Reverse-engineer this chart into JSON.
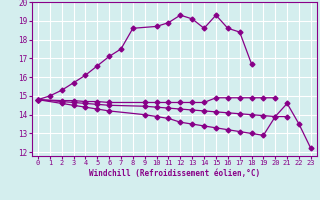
{
  "xlabel": "Windchill (Refroidissement éolien,°C)",
  "bg_color": "#d4eeee",
  "grid_color": "#ffffff",
  "line_color": "#880088",
  "xlim": [
    -0.5,
    23.5
  ],
  "ylim": [
    11.8,
    20.0
  ],
  "xticks": [
    0,
    1,
    2,
    3,
    4,
    5,
    6,
    7,
    8,
    9,
    10,
    11,
    12,
    13,
    14,
    15,
    16,
    17,
    18,
    19,
    20,
    21,
    22,
    23
  ],
  "yticks": [
    12,
    13,
    14,
    15,
    16,
    17,
    18,
    19,
    20
  ],
  "series": [
    {
      "x": [
        0,
        1,
        2,
        3,
        4,
        5,
        6,
        7,
        8,
        10,
        11,
        12,
        13,
        14,
        15,
        16,
        17,
        18
      ],
      "y": [
        14.8,
        15.0,
        15.3,
        15.7,
        16.1,
        16.6,
        17.1,
        17.5,
        18.6,
        18.7,
        18.9,
        19.3,
        19.1,
        18.6,
        19.3,
        18.6,
        18.4,
        16.7
      ]
    },
    {
      "x": [
        0,
        2,
        3,
        4,
        5,
        6,
        9,
        10,
        11,
        12,
        13,
        14,
        15,
        16,
        17,
        18,
        19,
        20
      ],
      "y": [
        14.8,
        14.75,
        14.75,
        14.7,
        14.7,
        14.65,
        14.65,
        14.65,
        14.65,
        14.65,
        14.65,
        14.65,
        14.9,
        14.9,
        14.9,
        14.9,
        14.9,
        14.9
      ]
    },
    {
      "x": [
        0,
        2,
        3,
        4,
        5,
        6,
        9,
        10,
        11,
        12,
        13,
        14,
        15,
        16,
        17,
        18,
        19,
        20,
        21
      ],
      "y": [
        14.8,
        14.7,
        14.65,
        14.6,
        14.55,
        14.5,
        14.45,
        14.4,
        14.35,
        14.3,
        14.25,
        14.2,
        14.15,
        14.1,
        14.05,
        14.0,
        13.95,
        13.9,
        13.9
      ]
    },
    {
      "x": [
        0,
        2,
        3,
        4,
        5,
        6,
        9,
        10,
        11,
        12,
        13,
        14,
        15,
        16,
        17,
        18,
        19,
        20,
        21,
        22,
        23
      ],
      "y": [
        14.8,
        14.6,
        14.5,
        14.4,
        14.3,
        14.2,
        14.0,
        13.9,
        13.8,
        13.6,
        13.5,
        13.4,
        13.3,
        13.2,
        13.1,
        13.0,
        12.9,
        13.9,
        14.6,
        13.5,
        12.2
      ]
    }
  ]
}
